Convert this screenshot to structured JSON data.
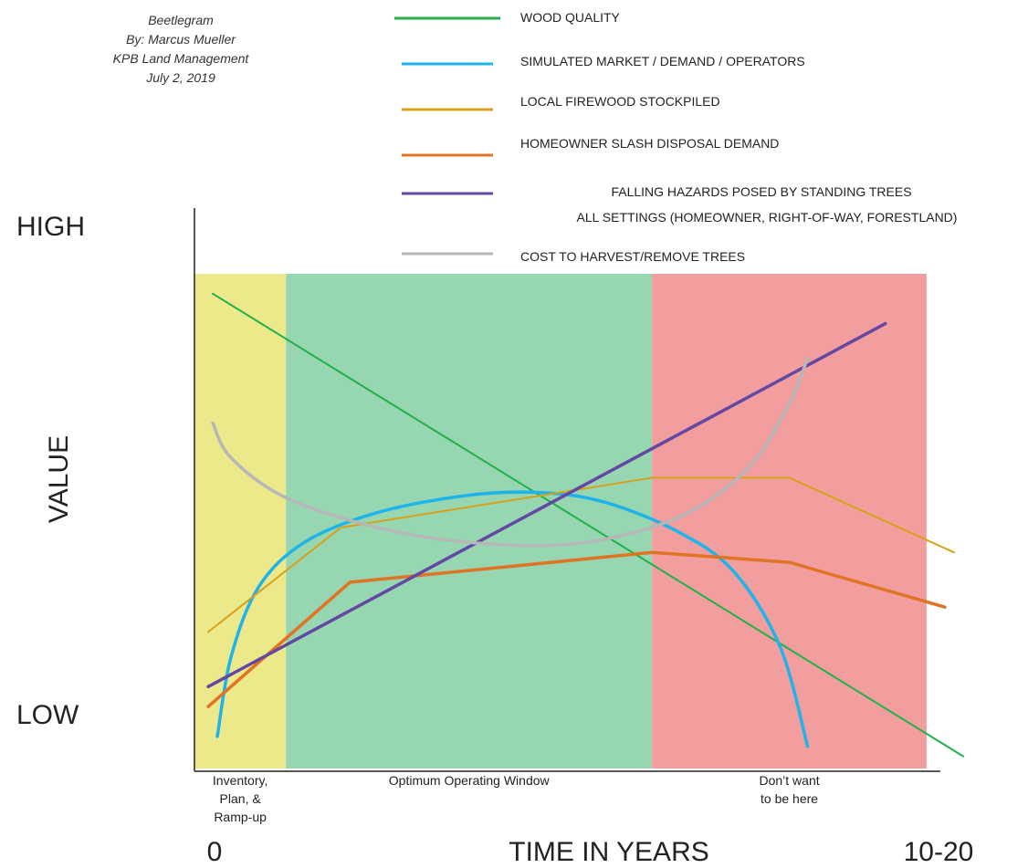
{
  "credit": {
    "line1": "Beetlegram",
    "line2": "By: Marcus Mueller",
    "line3": "KPB Land Management",
    "line4": "July 2, 2019"
  },
  "chart_data": {
    "type": "line",
    "ylabel": "VALUE",
    "xlabel": "TIME IN YEARS",
    "y_tick_labels": {
      "high": "HIGH",
      "low": "LOW"
    },
    "x_tick_labels": {
      "start": "0",
      "end": "10-20"
    },
    "x_units_note": "",
    "zones": [
      {
        "label_lines": [
          "Inventory,",
          "Plan, &",
          "Ramp-up"
        ],
        "x_start": 0,
        "x_end": 1,
        "color": "#ece98a"
      },
      {
        "label_lines": [
          "Optimum Operating Window"
        ],
        "x_start": 1,
        "x_end": 5,
        "color": "#96d6b1"
      },
      {
        "label_lines": [
          "Don’t want",
          "to be here"
        ],
        "x_start": 5,
        "x_end": 8,
        "color": "#f29e9e"
      }
    ],
    "xlim": [
      0,
      8.4
    ],
    "ylim": [
      0,
      10
    ],
    "legend_position": "top",
    "series": [
      {
        "name": "WOOD QUALITY",
        "color": "#22b04b",
        "points": [
          [
            0.2,
            9.6
          ],
          [
            8.4,
            0.3
          ]
        ]
      },
      {
        "name": "SIMULATED MARKET / DEMAND / OPERATORS",
        "color": "#1eb3ea",
        "points": [
          [
            0.25,
            0.7
          ],
          [
            0.4,
            2.3
          ],
          [
            0.7,
            3.7
          ],
          [
            1.2,
            4.6
          ],
          [
            2.0,
            5.2
          ],
          [
            3.0,
            5.55
          ],
          [
            3.8,
            5.6
          ],
          [
            4.5,
            5.4
          ],
          [
            5.3,
            4.8
          ],
          [
            5.9,
            4.0
          ],
          [
            6.4,
            2.5
          ],
          [
            6.7,
            0.5
          ]
        ]
      },
      {
        "name": "LOCAL FIREWOOD STOCKPILED",
        "color": "#d9a019",
        "points": [
          [
            0.15,
            2.8
          ],
          [
            1.6,
            4.9
          ],
          [
            5.0,
            5.9
          ],
          [
            6.5,
            5.9
          ],
          [
            8.3,
            4.4
          ]
        ]
      },
      {
        "name": "HOMEOWNER SLASH DISPOSAL DEMAND",
        "color": "#e07424",
        "points": [
          [
            0.15,
            1.3
          ],
          [
            1.7,
            3.8
          ],
          [
            5.0,
            4.4
          ],
          [
            6.5,
            4.2
          ],
          [
            8.2,
            3.3
          ]
        ]
      },
      {
        "name": "FALLING HAZARDS POSED BY STANDING TREES",
        "name_line2": "ALL SETTINGS (HOMEOWNER, RIGHT-OF-WAY, FORESTLAND)",
        "color": "#6447a3",
        "points": [
          [
            0.15,
            1.7
          ],
          [
            7.55,
            9.0
          ]
        ]
      },
      {
        "name": "COST TO HARVEST/REMOVE TREES",
        "color": "#b7b6b8",
        "points": [
          [
            0.2,
            7.0
          ],
          [
            0.4,
            6.3
          ],
          [
            1.0,
            5.5
          ],
          [
            2.0,
            4.9
          ],
          [
            3.0,
            4.6
          ],
          [
            4.0,
            4.55
          ],
          [
            4.8,
            4.8
          ],
          [
            5.5,
            5.3
          ],
          [
            6.1,
            6.2
          ],
          [
            6.5,
            7.4
          ],
          [
            6.7,
            8.3
          ]
        ]
      }
    ]
  }
}
